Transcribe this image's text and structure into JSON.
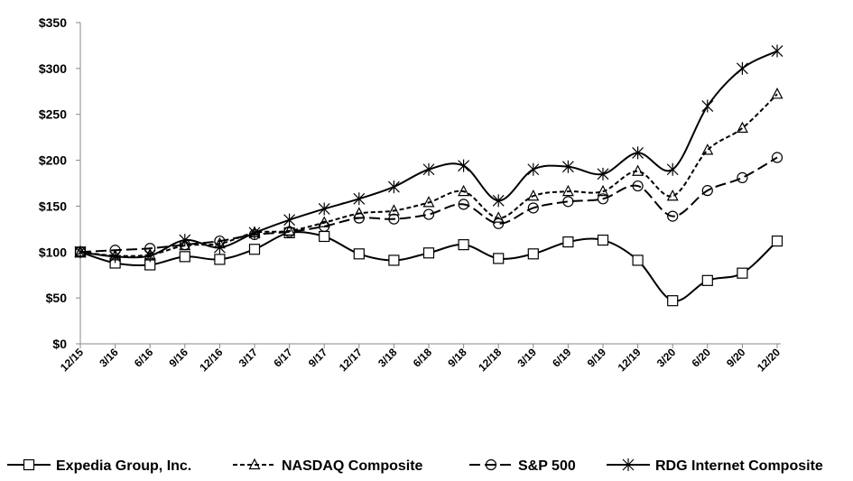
{
  "chart_data": {
    "type": "line",
    "title": "",
    "xlabel": "",
    "ylabel": "",
    "categories": [
      "12/15",
      "3/16",
      "6/16",
      "9/16",
      "12/16",
      "3/17",
      "6/17",
      "9/17",
      "12/17",
      "3/18",
      "6/18",
      "9/18",
      "12/18",
      "3/19",
      "6/19",
      "9/19",
      "12/19",
      "3/20",
      "6/20",
      "9/20",
      "12/20"
    ],
    "ylim": [
      0,
      350
    ],
    "yticks": [
      0,
      50,
      100,
      150,
      200,
      250,
      300,
      350
    ],
    "ytick_labels": [
      "$0",
      "$50",
      "$100",
      "$150",
      "$200",
      "$250",
      "$300",
      "$350"
    ],
    "grid": false,
    "legend_position": "bottom",
    "series": [
      {
        "name": "Expedia Group, Inc.",
        "marker": "square",
        "dash": "solid",
        "values": [
          100,
          88,
          86,
          95,
          92,
          103,
          121,
          117,
          98,
          91,
          99,
          108,
          93,
          98,
          111,
          113,
          91,
          47,
          69,
          77,
          112
        ]
      },
      {
        "name": "NASDAQ Composite",
        "marker": "triangle",
        "dash": "short-dash",
        "values": [
          100,
          96,
          97,
          107,
          109,
          121,
          123,
          132,
          142,
          145,
          154,
          166,
          137,
          161,
          166,
          166,
          188,
          161,
          211,
          235,
          272
        ]
      },
      {
        "name": "S&P 500",
        "marker": "circle",
        "dash": "long-dash",
        "values": [
          100,
          102,
          104,
          108,
          112,
          119,
          122,
          128,
          137,
          136,
          141,
          152,
          131,
          148,
          155,
          158,
          172,
          139,
          167,
          181,
          203
        ]
      },
      {
        "name": "RDG Internet Composite",
        "marker": "star",
        "dash": "solid",
        "values": [
          100,
          95,
          96,
          113,
          105,
          121,
          135,
          147,
          158,
          171,
          190,
          194,
          156,
          190,
          193,
          185,
          208,
          190,
          259,
          300,
          319
        ]
      }
    ]
  }
}
